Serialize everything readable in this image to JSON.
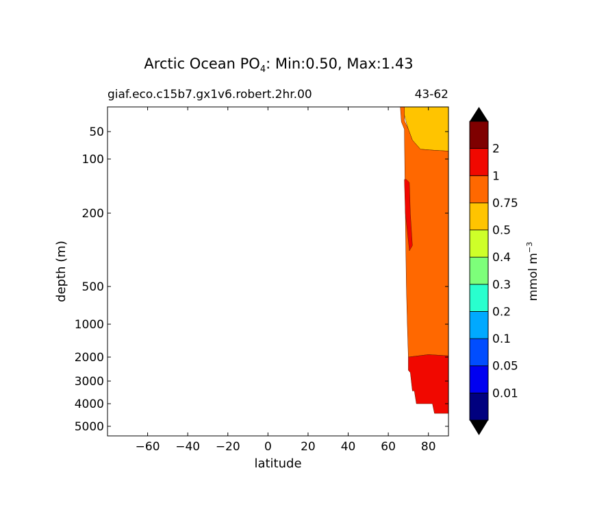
{
  "chart_data": {
    "type": "contour",
    "title_prefix": "Arctic Ocean PO",
    "title_sub": "4",
    "title_suffix": ": Min:0.50, Max:1.43",
    "subtitle_left": "giaf.eco.c15b7.gx1v6.robert.2hr.00",
    "subtitle_right": "43-62",
    "xlabel": "latitude",
    "ylabel": "depth (m)",
    "xlim": [
      -80,
      90
    ],
    "ylim_depth": [
      5,
      6000
    ],
    "y_scale": "depth-warped",
    "x_ticks": [
      -60,
      -40,
      -20,
      0,
      20,
      40,
      60,
      80
    ],
    "x_tick_labels": [
      "−60",
      "−40",
      "−20",
      "0",
      "20",
      "40",
      "60",
      "80"
    ],
    "y_ticks": [
      50,
      100,
      200,
      500,
      1000,
      2000,
      3000,
      4000,
      5000
    ],
    "y_tick_labels": [
      "50",
      "100",
      "200",
      "500",
      "1000",
      "2000",
      "3000",
      "4000",
      "5000"
    ],
    "contour_levels": [
      0,
      0.01,
      0.05,
      0.1,
      0.2,
      0.3,
      0.4,
      0.5,
      0.75,
      1,
      2
    ],
    "level_colors": [
      "#00007f",
      "#0000f1",
      "#004dff",
      "#00a9ff",
      "#29ffce",
      "#7dff7a",
      "#ceff29",
      "#ffc400",
      "#ff6800",
      "#f10800",
      "#7f0000"
    ],
    "extend_colors": {
      "under": "#000000",
      "over": "#000000"
    },
    "colorbar_tick_labels": [
      "0.01",
      "0.05",
      "0.1",
      "0.2",
      "0.3",
      "0.4",
      "0.5",
      "0.75",
      "1",
      "2"
    ],
    "colorbar_label_main": "mmol m",
    "colorbar_label_exp": "−3",
    "regions": [
      {
        "level": "0.5-0.75",
        "color": "#ffc400",
        "points": [
          [
            66,
            5
          ],
          [
            90,
            5
          ],
          [
            90,
            82
          ],
          [
            82,
            80
          ],
          [
            76,
            78
          ],
          [
            72,
            62
          ],
          [
            70,
            40
          ],
          [
            69,
            22
          ],
          [
            67,
            5
          ]
        ]
      },
      {
        "level": "0.75-1",
        "color": "#ff6800",
        "points": [
          [
            66,
            5
          ],
          [
            68,
            5
          ],
          [
            68,
            18
          ],
          [
            70,
            40
          ],
          [
            72,
            62
          ],
          [
            76,
            78
          ],
          [
            82,
            80
          ],
          [
            90,
            82
          ],
          [
            90,
            1950
          ],
          [
            80,
            1900
          ],
          [
            75,
            1950
          ],
          [
            70,
            2000
          ],
          [
            69.5,
            1000
          ],
          [
            69,
            500
          ],
          [
            68.5,
            200
          ],
          [
            68,
            40
          ],
          [
            66.5,
            20
          ]
        ]
      },
      {
        "level": "1-2",
        "color": "#f10800",
        "points": [
          [
            69,
            130
          ],
          [
            70.5,
            135
          ],
          [
            71,
            200
          ],
          [
            72,
            300
          ],
          [
            70.5,
            320
          ],
          [
            69.5,
            250
          ],
          [
            68.5,
            200
          ],
          [
            68,
            130
          ]
        ]
      },
      {
        "level": "1-2",
        "color": "#f10800",
        "points": [
          [
            70,
            2000
          ],
          [
            75,
            1950
          ],
          [
            80,
            1900
          ],
          [
            90,
            1950
          ],
          [
            90,
            4400
          ],
          [
            83,
            4400
          ],
          [
            82,
            4000
          ],
          [
            74,
            4000
          ],
          [
            73,
            3400
          ],
          [
            72,
            3400
          ],
          [
            71,
            2600
          ],
          [
            70,
            2500
          ]
        ]
      }
    ]
  }
}
